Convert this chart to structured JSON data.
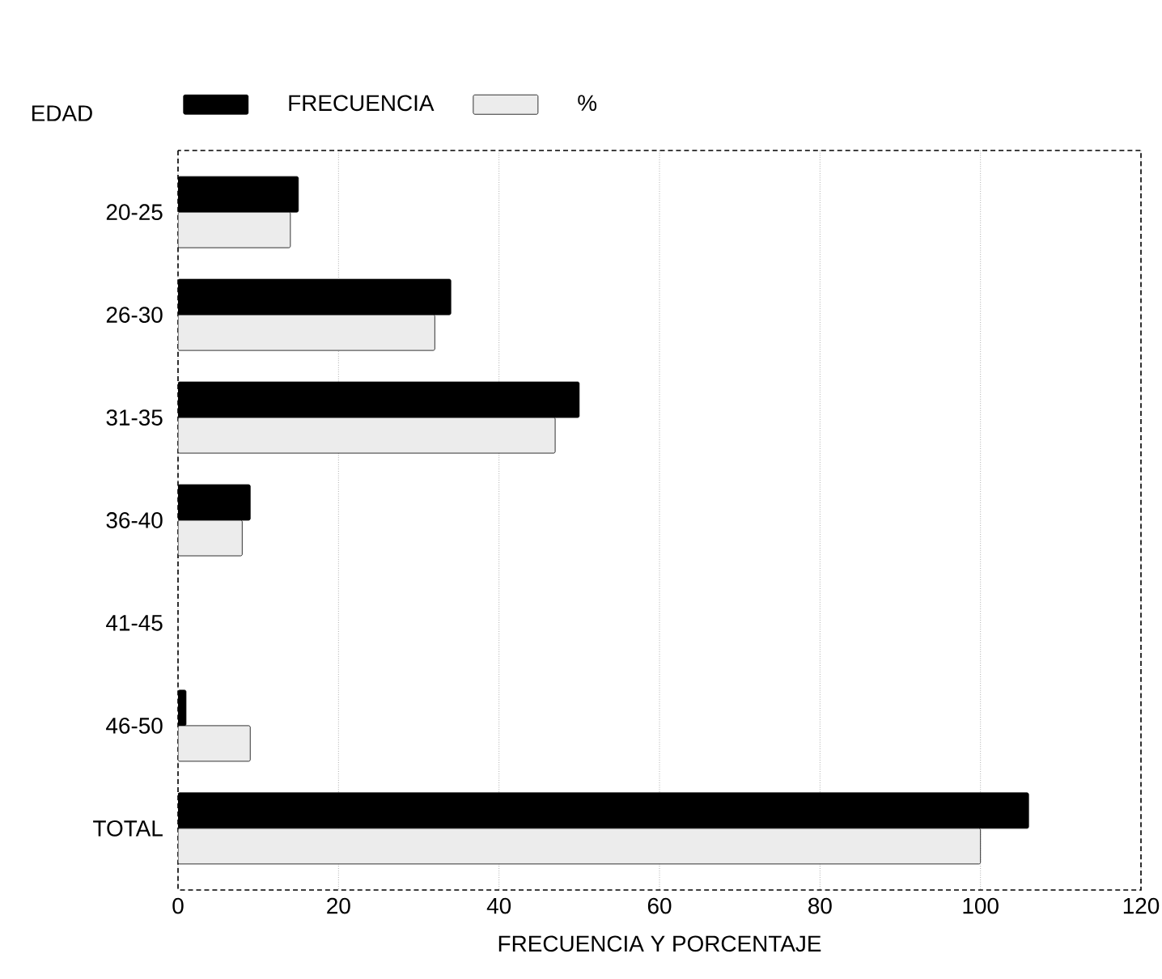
{
  "chart_data": {
    "type": "bar",
    "orientation": "horizontal",
    "ylabel": "EDAD",
    "xlabel": "FRECUENCIA Y PORCENTAJE",
    "categories": [
      "20-25",
      "26-30",
      "31-35",
      "36-40",
      "41-45",
      "46-50",
      "TOTAL"
    ],
    "series": [
      {
        "name": "FRECUENCIA",
        "color": "#000000",
        "values": [
          15,
          34,
          50,
          9,
          null,
          1,
          106
        ]
      },
      {
        "name": "%",
        "color": "#ececec",
        "values": [
          14,
          32,
          47,
          8,
          null,
          9,
          100
        ]
      }
    ],
    "xlim": [
      0,
      120
    ],
    "xticks": [
      0,
      20,
      40,
      60,
      80,
      100,
      120
    ],
    "grid": "x",
    "legend": "top left"
  }
}
